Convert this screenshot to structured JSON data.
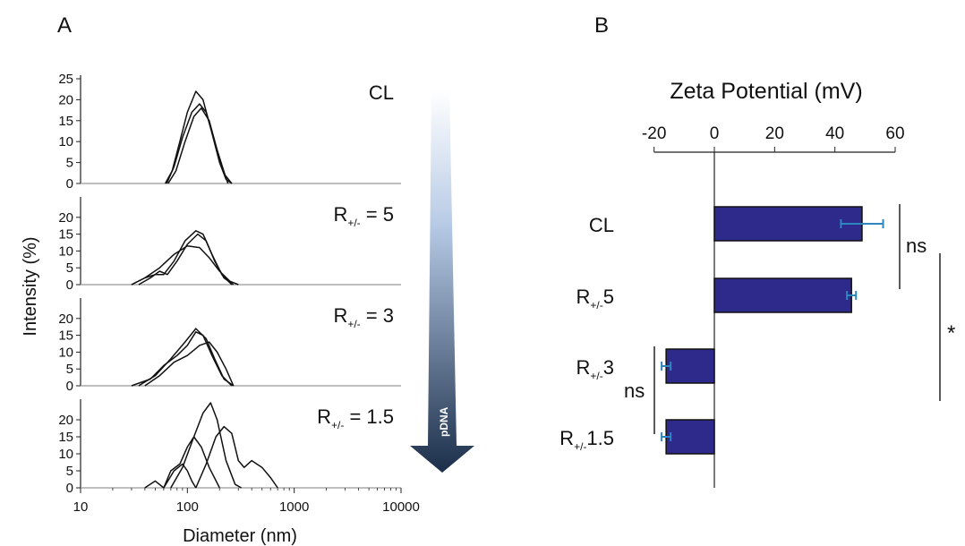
{
  "panels": {
    "a_letter": "A",
    "b_letter": "B"
  },
  "arrow": {
    "label": "pDNA",
    "color_top": "#ffffff",
    "color_bottom": "#1b2e4a"
  },
  "chart_data": [
    {
      "type": "line",
      "panel": "A",
      "xlabel": "Diameter (nm)",
      "ylabel": "Intensity (%)",
      "x_scale": "log",
      "xlim": [
        10,
        10000
      ],
      "x_ticks": [
        "10",
        "100",
        "1000",
        "10000"
      ],
      "y_ticks": [
        "0",
        "5",
        "10",
        "15",
        "20",
        "25"
      ],
      "subplots": [
        {
          "label_main": "CL",
          "label_sub": "",
          "label_tail": "",
          "ylim": [
            0,
            25
          ],
          "curves": [
            [
              [
                62,
                0
              ],
              [
                72,
                3
              ],
              [
                85,
                10
              ],
              [
                100,
                17
              ],
              [
                120,
                22
              ],
              [
                140,
                20
              ],
              [
                170,
                12
              ],
              [
                200,
                5
              ],
              [
                230,
                1
              ],
              [
                260,
                0
              ]
            ],
            [
              [
                64,
                0
              ],
              [
                75,
                4
              ],
              [
                90,
                11
              ],
              [
                110,
                17
              ],
              [
                130,
                19
              ],
              [
                150,
                17
              ],
              [
                180,
                10
              ],
              [
                210,
                4
              ],
              [
                240,
                0
              ]
            ],
            [
              [
                66,
                0
              ],
              [
                78,
                3
              ],
              [
                95,
                10
              ],
              [
                115,
                16
              ],
              [
                135,
                18
              ],
              [
                160,
                15
              ],
              [
                190,
                8
              ],
              [
                225,
                2
              ],
              [
                260,
                0
              ]
            ]
          ]
        },
        {
          "label_main": "R",
          "label_sub": "+/-",
          "label_tail": " = 5",
          "ylim": [
            0,
            25
          ],
          "curves": [
            [
              [
                30,
                0
              ],
              [
                40,
                2
              ],
              [
                50,
                3
              ],
              [
                60,
                3
              ],
              [
                75,
                7
              ],
              [
                95,
                13
              ],
              [
                120,
                16
              ],
              [
                140,
                15
              ],
              [
                170,
                9
              ],
              [
                210,
                3
              ],
              [
                260,
                0
              ]
            ],
            [
              [
                35,
                0
              ],
              [
                45,
                2
              ],
              [
                55,
                4
              ],
              [
                65,
                3
              ],
              [
                80,
                7
              ],
              [
                100,
                12
              ],
              [
                125,
                15
              ],
              [
                150,
                13
              ],
              [
                180,
                7
              ],
              [
                220,
                2
              ],
              [
                270,
                0
              ]
            ],
            [
              [
                30,
                0
              ],
              [
                40,
                2
              ],
              [
                55,
                5
              ],
              [
                75,
                9
              ],
              [
                100,
                11.5
              ],
              [
                130,
                11
              ],
              [
                160,
                8
              ],
              [
                200,
                4
              ],
              [
                250,
                1
              ],
              [
                300,
                0
              ]
            ]
          ]
        },
        {
          "label_main": "R",
          "label_sub": "+/-",
          "label_tail": " = 3",
          "ylim": [
            0,
            25
          ],
          "curves": [
            [
              [
                30,
                0
              ],
              [
                45,
                2
              ],
              [
                60,
                6
              ],
              [
                80,
                9
              ],
              [
                100,
                12
              ],
              [
                120,
                16
              ],
              [
                140,
                15
              ],
              [
                170,
                9
              ],
              [
                210,
                3
              ],
              [
                260,
                0
              ]
            ],
            [
              [
                35,
                0
              ],
              [
                50,
                3
              ],
              [
                70,
                8
              ],
              [
                95,
                13
              ],
              [
                120,
                17
              ],
              [
                150,
                14
              ],
              [
                180,
                8
              ],
              [
                220,
                2
              ],
              [
                270,
                0
              ]
            ],
            [
              [
                40,
                0
              ],
              [
                55,
                3
              ],
              [
                75,
                7
              ],
              [
                100,
                9
              ],
              [
                130,
                12
              ],
              [
                160,
                13
              ],
              [
                190,
                10
              ],
              [
                230,
                5
              ],
              [
                270,
                0
              ]
            ]
          ]
        },
        {
          "label_main": "R",
          "label_sub": "+/-",
          "label_tail": " = 1.5",
          "ylim": [
            0,
            25
          ],
          "curves": [
            [
              [
                40,
                0
              ],
              [
                50,
                2
              ],
              [
                60,
                0
              ],
              [
                70,
                5
              ],
              [
                85,
                7
              ],
              [
                100,
                12
              ],
              [
                115,
                15
              ],
              [
                135,
                12
              ],
              [
                160,
                6
              ],
              [
                200,
                0
              ]
            ],
            [
              [
                70,
                0
              ],
              [
                90,
                6
              ],
              [
                115,
                15
              ],
              [
                140,
                22
              ],
              [
                165,
                25
              ],
              [
                190,
                20
              ],
              [
                230,
                8
              ],
              [
                280,
                1
              ],
              [
                320,
                0
              ]
            ],
            [
              [
                120,
                0
              ],
              [
                150,
                7
              ],
              [
                185,
                15
              ],
              [
                220,
                18
              ],
              [
                260,
                16
              ],
              [
                300,
                8
              ],
              [
                340,
                6
              ],
              [
                400,
                8
              ],
              [
                500,
                6
              ],
              [
                600,
                3
              ],
              [
                700,
                0
              ]
            ],
            [
              [
                60,
                0
              ],
              [
                75,
                5
              ],
              [
                90,
                7
              ],
              [
                100,
                5
              ],
              [
                110,
                2
              ],
              [
                120,
                0
              ]
            ]
          ]
        }
      ]
    },
    {
      "type": "bar",
      "panel": "B",
      "orientation": "horizontal",
      "title": "Zeta Potential (mV)",
      "x_ticks": [
        "-20",
        "0",
        "20",
        "40",
        "60"
      ],
      "xlim": [
        -20,
        60
      ],
      "bar_color": "#2e2a8c",
      "error_color": "#2e86c1",
      "categories": [
        {
          "main": "CL",
          "sub": "",
          "tail": ""
        },
        {
          "main": "R",
          "sub": "+/-",
          "tail": "5"
        },
        {
          "main": "R",
          "sub": "+/-",
          "tail": "3"
        },
        {
          "main": "R",
          "sub": "+/-",
          "tail": "1.5"
        }
      ],
      "values": [
        49,
        45.5,
        -16,
        -16
      ],
      "errors": [
        7,
        1.5,
        1.5,
        1.5
      ],
      "significance": [
        {
          "label": "ns",
          "from": 0,
          "to": 1
        },
        {
          "label": "*",
          "from": 0.5,
          "to": 2.5
        },
        {
          "label": "ns",
          "from": 2,
          "to": 3
        }
      ]
    }
  ]
}
